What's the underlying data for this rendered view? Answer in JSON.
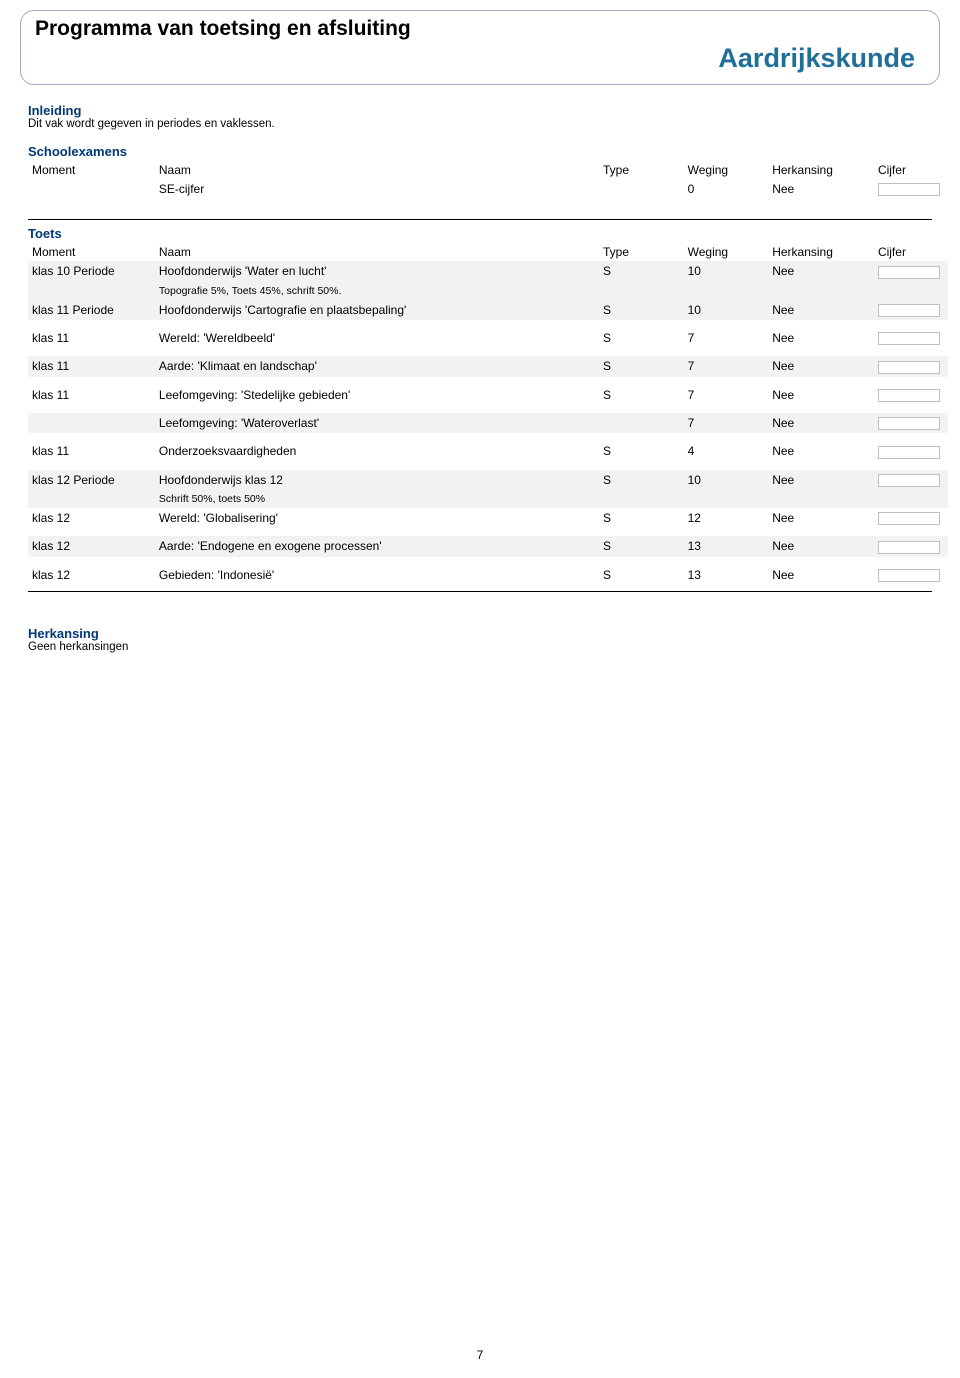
{
  "page": {
    "title": "Programma van toetsing en afsluiting",
    "subject": "Aardrijkskunde",
    "number": "7"
  },
  "inleiding": {
    "heading": "Inleiding",
    "text": "Dit vak wordt gegeven in periodes en vaklessen."
  },
  "schoolexamens": {
    "heading": "Schoolexamens",
    "headers": {
      "moment": "Moment",
      "naam": "Naam",
      "type": "Type",
      "weging": "Weging",
      "herkansing": "Herkansing",
      "cijfer": "Cijfer"
    },
    "rows": [
      {
        "moment": "",
        "naam": "SE-cijfer",
        "type": "",
        "weging": "0",
        "herkansing": "Nee",
        "cijfer_box": true
      }
    ]
  },
  "toets": {
    "heading": "Toets",
    "headers": {
      "moment": "Moment",
      "naam": "Naam",
      "type": "Type",
      "weging": "Weging",
      "herkansing": "Herkansing",
      "cijfer": "Cijfer"
    },
    "groups": [
      {
        "rows": [
          {
            "moment": "klas 10 Periode",
            "naam": "Hoofdonderwijs 'Water en lucht'",
            "sub": "Topografie 5%, Toets 45%, schrift 50%.",
            "type": "S",
            "weging": "10",
            "herkansing": "Nee",
            "shaded": true,
            "cijfer_box": true
          },
          {
            "moment": "klas 11 Periode",
            "naam": "Hoofdonderwijs 'Cartografie en plaatsbepaling'",
            "type": "S",
            "weging": "10",
            "herkansing": "Nee",
            "shaded": true,
            "cijfer_box": true
          }
        ]
      },
      {
        "rows": [
          {
            "moment": "klas 11",
            "naam": "Wereld: 'Wereldbeeld'",
            "type": "S",
            "weging": "7",
            "herkansing": "Nee",
            "shaded": false,
            "cijfer_box": true
          }
        ]
      },
      {
        "rows": [
          {
            "moment": "klas 11",
            "naam": "Aarde: 'Klimaat en landschap'",
            "type": "S",
            "weging": "7",
            "herkansing": "Nee",
            "shaded": true,
            "cijfer_box": true
          }
        ]
      },
      {
        "rows": [
          {
            "moment": "klas 11",
            "naam": "Leefomgeving: 'Stedelijke gebieden'",
            "type": "S",
            "weging": "7",
            "herkansing": "Nee",
            "shaded": false,
            "cijfer_box": true
          }
        ]
      },
      {
        "rows": [
          {
            "moment": "",
            "naam": "Leefomgeving: 'Wateroverlast'",
            "type": "",
            "weging": "7",
            "herkansing": "Nee",
            "shaded": true,
            "cijfer_box": true
          }
        ]
      },
      {
        "rows": [
          {
            "moment": "klas 11",
            "naam": "Onderzoeksvaardigheden",
            "type": "S",
            "weging": "4",
            "herkansing": "Nee",
            "shaded": false,
            "cijfer_box": true
          }
        ]
      },
      {
        "rows": [
          {
            "moment": "klas 12 Periode",
            "naam": "Hoofdonderwijs klas 12",
            "sub": "Schrift 50%, toets 50%",
            "type": "S",
            "weging": "10",
            "herkansing": "Nee",
            "shaded": true,
            "cijfer_box": true
          },
          {
            "moment": "klas 12",
            "naam": "Wereld: 'Globalisering'",
            "type": "S",
            "weging": "12",
            "herkansing": "Nee",
            "shaded": false,
            "cijfer_box": true
          }
        ]
      },
      {
        "rows": [
          {
            "moment": "klas 12",
            "naam": "Aarde: 'Endogene en exogene processen'",
            "type": "S",
            "weging": "13",
            "herkansing": "Nee",
            "shaded": true,
            "cijfer_box": true
          }
        ]
      },
      {
        "rows": [
          {
            "moment": "klas 12",
            "naam": "Gebieden: 'Indonesië'",
            "type": "S",
            "weging": "13",
            "herkansing": "Nee",
            "shaded": false,
            "cijfer_box": true
          }
        ]
      }
    ]
  },
  "herkansing": {
    "heading": "Herkansing",
    "text": "Geen herkansingen"
  },
  "colors": {
    "frame_border": "#a8a8c0",
    "subject_color": "#1f6f99",
    "section_label_color": "#003878",
    "shade_bg": "#f2f2f2",
    "box_border": "#bfbfbf"
  }
}
